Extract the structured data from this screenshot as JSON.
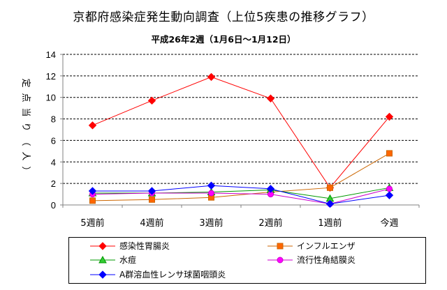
{
  "chart_data": {
    "type": "line",
    "title": "京都府感染症発生動向調査（上位5疾患の推移グラフ）",
    "subtitle": "平成26年2週（1月6日～1月12日）",
    "ylabel": "定点当り（人）",
    "xlabel": "",
    "categories": [
      "5週前",
      "4週前",
      "3週前",
      "2週前",
      "1週前",
      "今週"
    ],
    "ylim": [
      0,
      14
    ],
    "yticks": [
      0,
      2,
      4,
      6,
      8,
      10,
      12,
      14
    ],
    "grid": true,
    "legend_position": "bottom",
    "series": [
      {
        "name": "感染性胃腸炎",
        "values": [
          7.4,
          9.7,
          11.9,
          9.9,
          1.6,
          8.2
        ],
        "color": "#ff0000",
        "marker": "diamond"
      },
      {
        "name": "インフルエンザ",
        "values": [
          0.4,
          0.5,
          0.7,
          1.2,
          1.6,
          4.8
        ],
        "color": "#cc6600",
        "marker": "square",
        "fill": "#ff6600"
      },
      {
        "name": "水痘",
        "values": [
          1.1,
          1.1,
          1.2,
          1.4,
          0.6,
          1.6
        ],
        "color": "#009900",
        "marker": "triangle",
        "fill": "#33cc33"
      },
      {
        "name": "流行性角結膜炎",
        "values": [
          1.0,
          1.1,
          1.1,
          1.0,
          0.1,
          1.5
        ],
        "color": "#cc00cc",
        "marker": "circle",
        "fill": "#ff00ff"
      },
      {
        "name": "A群溶血性レンサ球菌咽頭炎",
        "values": [
          1.3,
          1.3,
          1.8,
          1.5,
          0.1,
          0.9
        ],
        "color": "#0000ff",
        "marker": "diamond"
      }
    ]
  }
}
